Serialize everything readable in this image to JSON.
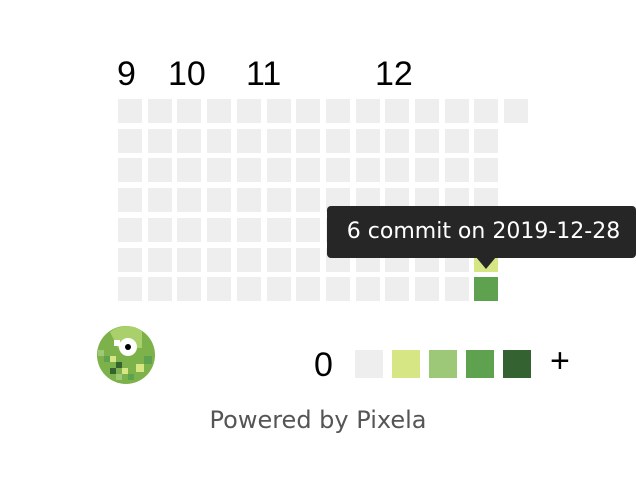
{
  "months": [
    "9",
    "10",
    "11",
    "12"
  ],
  "graph": {
    "weeks": 14,
    "days_per_week": 7,
    "empty_color": "#eeeeee",
    "filled_cells": [
      {
        "week": 12,
        "day": 5,
        "level": 1
      },
      {
        "week": 12,
        "day": 6,
        "level": 3
      }
    ]
  },
  "tooltip": {
    "text": "6 commit on 2019-12-28"
  },
  "legend": {
    "low_label": "0",
    "high_label": "+",
    "colors": [
      "#eeeeee",
      "#d6e685",
      "#9dc878",
      "#5ea14e",
      "#346230"
    ]
  },
  "footer": {
    "powered_by": "Powered by Pixela"
  },
  "logo": {
    "icon": "pixela-logo-icon"
  }
}
